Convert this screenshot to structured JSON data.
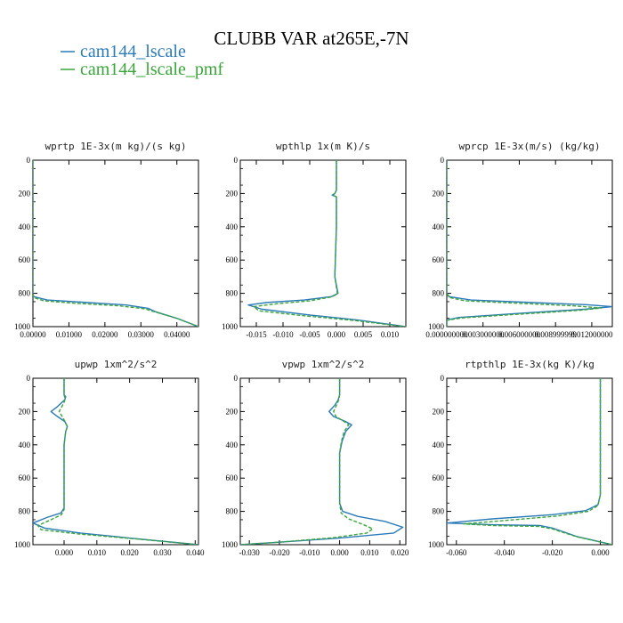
{
  "title": "CLUBB VAR at265E,-7N",
  "colors": {
    "lscale": "#2b7bb9",
    "pmf": "#3aa63a"
  },
  "legend": [
    {
      "label": "cam144_lscale",
      "color": "#2b7bb9"
    },
    {
      "label": "cam144_lscale_pmf",
      "color": "#3aa63a"
    }
  ],
  "chart_data": [
    {
      "type": "line",
      "title": "wprtp  1E-3x(m kg)/(s kg)",
      "xlim": [
        0,
        0.046
      ],
      "ylim": [
        0,
        1000
      ],
      "y_inverted": true,
      "xticks": [
        0,
        0.01,
        0.02,
        0.03,
        0.04
      ],
      "xtick_labels": [
        "0.00000",
        "0.01000",
        "0.02000",
        "0.03000",
        "0.04000"
      ],
      "yticks": [
        0,
        200,
        400,
        600,
        800,
        1000
      ],
      "series": [
        {
          "name": "cam144_lscale",
          "x": [
            0,
            0,
            0,
            0,
            0.0002,
            0.004,
            0.015,
            0.026,
            0.032,
            0.034,
            0.04,
            0.046
          ],
          "y": [
            0,
            300,
            600,
            800,
            820,
            840,
            855,
            870,
            890,
            910,
            950,
            1000
          ]
        },
        {
          "name": "cam144_lscale_pmf",
          "x": [
            0,
            0,
            0,
            0,
            0.0002,
            0.003,
            0.012,
            0.024,
            0.031,
            0.034,
            0.04,
            0.046
          ],
          "y": [
            0,
            300,
            600,
            800,
            825,
            845,
            860,
            875,
            893,
            912,
            950,
            1000
          ]
        }
      ]
    },
    {
      "type": "line",
      "title": "wpthlp  1x(m K)/s",
      "xlim": [
        -0.018,
        0.013
      ],
      "ylim": [
        0,
        1000
      ],
      "y_inverted": true,
      "xticks": [
        -0.015,
        -0.01,
        -0.005,
        0.0,
        0.005,
        0.01
      ],
      "xtick_labels": [
        "-0.015",
        "-0.010",
        "-0.005",
        "0.000",
        "0.005",
        "0.010"
      ],
      "yticks": [
        0,
        200,
        400,
        600,
        800,
        1000
      ],
      "series": [
        {
          "name": "cam144_lscale",
          "x": [
            0,
            0,
            -0.0003,
            -0.0008,
            0,
            0,
            -0.0003,
            0.0003,
            -0.001,
            -0.006,
            -0.013,
            -0.0165,
            -0.014,
            -0.005,
            0.004,
            0.013
          ],
          "y": [
            0,
            180,
            200,
            210,
            220,
            400,
            700,
            800,
            820,
            840,
            855,
            870,
            895,
            930,
            960,
            1000
          ]
        },
        {
          "name": "cam144_lscale_pmf",
          "x": [
            0,
            0,
            -0.0003,
            -0.0006,
            0,
            0,
            -0.0003,
            0.0002,
            -0.001,
            -0.005,
            -0.011,
            -0.0155,
            -0.0145,
            -0.006,
            0.003,
            0.013
          ],
          "y": [
            0,
            180,
            200,
            210,
            220,
            400,
            700,
            805,
            822,
            845,
            862,
            880,
            905,
            935,
            962,
            1000
          ]
        }
      ]
    },
    {
      "type": "line",
      "title": "wprcp  1E-3x(m/s) (kg/kg)",
      "xlim": [
        0,
        0.0137
      ],
      "ylim": [
        0,
        1000
      ],
      "y_inverted": true,
      "xticks": [
        0,
        0.003,
        0.006,
        0.009,
        0.012
      ],
      "xtick_labels": [
        "0.000000000",
        "0.003000000",
        "0.006000000",
        "0.008999999",
        "0.012000000"
      ],
      "yticks": [
        0,
        200,
        400,
        600,
        800,
        1000
      ],
      "series": [
        {
          "name": "cam144_lscale",
          "x": [
            0,
            0,
            0,
            0.0002,
            0.002,
            0.007,
            0.0115,
            0.0137,
            0.0115,
            0.006,
            0.001,
            0,
            0
          ],
          "y": [
            0,
            400,
            800,
            820,
            840,
            855,
            868,
            880,
            895,
            920,
            945,
            960,
            1000
          ]
        },
        {
          "name": "cam144_lscale_pmf",
          "x": [
            0,
            0,
            0,
            0.0002,
            0.0015,
            0.006,
            0.0105,
            0.0128,
            0.011,
            0.006,
            0.0012,
            0,
            0
          ],
          "y": [
            0,
            400,
            800,
            825,
            845,
            860,
            875,
            888,
            902,
            925,
            948,
            962,
            1000
          ]
        }
      ]
    },
    {
      "type": "line",
      "title": "upwp  1xm^2/s^2",
      "xlim": [
        -0.0095,
        0.041
      ],
      "ylim": [
        0,
        1000
      ],
      "y_inverted": true,
      "xticks": [
        0,
        0.01,
        0.02,
        0.03,
        0.04
      ],
      "xtick_labels": [
        "0.000",
        "0.010",
        "0.020",
        "0.030",
        "0.040"
      ],
      "yticks": [
        0,
        200,
        400,
        600,
        800,
        1000
      ],
      "series": [
        {
          "name": "cam144_lscale",
          "x": [
            0,
            0,
            0.0005,
            0.0002,
            -0.002,
            -0.004,
            -0.002,
            0.0002,
            0.001,
            0.0005,
            0,
            0,
            0,
            -0.001,
            -0.005,
            -0.0095,
            -0.006,
            0.005,
            0.02,
            0.041
          ],
          "y": [
            0,
            100,
            110,
            130,
            170,
            200,
            230,
            260,
            290,
            320,
            400,
            600,
            780,
            810,
            835,
            870,
            900,
            930,
            960,
            1000
          ]
        },
        {
          "name": "cam144_lscale_pmf",
          "x": [
            0,
            0,
            0.0003,
            0.0001,
            -0.0008,
            -0.0015,
            -0.0006,
            0.0003,
            0.001,
            0.0005,
            0,
            0,
            0,
            -0.0008,
            -0.004,
            -0.008,
            -0.007,
            0.004,
            0.02,
            0.041
          ],
          "y": [
            0,
            100,
            120,
            140,
            175,
            200,
            230,
            260,
            290,
            320,
            400,
            600,
            790,
            820,
            850,
            885,
            910,
            935,
            962,
            1000
          ]
        }
      ]
    },
    {
      "type": "line",
      "title": "vpwp  1xm^2/s^2",
      "xlim": [
        -0.033,
        0.022
      ],
      "ylim": [
        0,
        1000
      ],
      "y_inverted": true,
      "xticks": [
        -0.03,
        -0.02,
        -0.01,
        0,
        0.01,
        0.02
      ],
      "xtick_labels": [
        "-0.030",
        "-0.020",
        "-0.010",
        "0.000",
        "0.010",
        "0.020"
      ],
      "yticks": [
        0,
        200,
        400,
        600,
        800,
        1000
      ],
      "series": [
        {
          "name": "cam144_lscale",
          "x": [
            0,
            0,
            -0.0005,
            -0.0015,
            -0.0035,
            -0.002,
            0.002,
            0.004,
            0.002,
            0.0008,
            0,
            0,
            0.001,
            0.006,
            0.015,
            0.021,
            0.018,
            0,
            -0.02,
            -0.033
          ],
          "y": [
            0,
            100,
            130,
            160,
            200,
            230,
            260,
            280,
            320,
            380,
            450,
            750,
            800,
            830,
            860,
            895,
            930,
            960,
            985,
            1000
          ]
        },
        {
          "name": "cam144_lscale_pmf",
          "x": [
            0,
            0,
            -0.0003,
            -0.001,
            -0.002,
            -0.0012,
            0.0015,
            0.003,
            0.0015,
            0.0006,
            0,
            0,
            0.0005,
            0.003,
            0.008,
            0.011,
            0.009,
            -0.002,
            -0.02,
            -0.033
          ],
          "y": [
            0,
            100,
            130,
            160,
            200,
            230,
            260,
            280,
            320,
            380,
            450,
            750,
            810,
            845,
            880,
            905,
            930,
            958,
            985,
            1000
          ]
        }
      ]
    },
    {
      "type": "line",
      "title": "rtpthlp  1E-3x(kg K)/kg",
      "xlim": [
        -0.064,
        0.005
      ],
      "ylim": [
        0,
        1000
      ],
      "y_inverted": true,
      "xticks": [
        -0.06,
        -0.04,
        -0.02,
        0
      ],
      "xtick_labels": [
        "-0.060",
        "-0.040",
        "-0.020",
        "0.000"
      ],
      "yticks": [
        0,
        200,
        400,
        600,
        800,
        1000
      ],
      "series": [
        {
          "name": "cam144_lscale",
          "x": [
            0,
            0,
            0,
            -0.001,
            -0.006,
            -0.02,
            -0.045,
            -0.064,
            -0.045,
            -0.025,
            -0.02,
            -0.01,
            0.005
          ],
          "y": [
            0,
            400,
            700,
            760,
            795,
            820,
            845,
            870,
            880,
            885,
            900,
            950,
            1000
          ]
        },
        {
          "name": "cam144_lscale_pmf",
          "x": [
            0,
            0,
            0,
            -0.001,
            -0.005,
            -0.018,
            -0.04,
            -0.057,
            -0.045,
            -0.026,
            -0.02,
            -0.01,
            0.005
          ],
          "y": [
            0,
            400,
            700,
            765,
            800,
            828,
            855,
            875,
            885,
            890,
            905,
            952,
            1000
          ]
        }
      ]
    }
  ]
}
